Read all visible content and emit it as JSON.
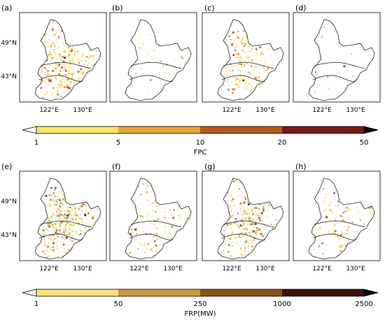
{
  "figure": {
    "rows": [
      {
        "panels": [
          "(a)",
          "(b)",
          "(c)",
          "(d)"
        ],
        "y_ticks": [
          "49°N",
          "43°N"
        ],
        "x_ticks": [
          "122°E",
          "130°E"
        ],
        "colorbar": {
          "ticks": [
            "1",
            "5",
            "10",
            "20",
            "50"
          ],
          "label": "FPC",
          "colors": [
            "#fde26b",
            "#e8a33c",
            "#b8571d",
            "#7a1616"
          ]
        },
        "fill_color": "#e8a02c",
        "density": [
          1.0,
          0.1,
          0.6,
          0.05
        ]
      },
      {
        "panels": [
          "(e)",
          "(f)",
          "(g)",
          "(h)"
        ],
        "y_ticks": [
          "49°N",
          "43°N"
        ],
        "x_ticks": [
          "122°E",
          "130°E"
        ],
        "colorbar": {
          "ticks": [
            "1",
            "50",
            "250",
            "1000",
            "2500"
          ],
          "label": "FRP(MW)",
          "colors": [
            "#f7e27a",
            "#c89a3d",
            "#8a5418",
            "#3d1208"
          ]
        },
        "fill_color": "#c8962c",
        "density": [
          1.0,
          0.35,
          0.85,
          0.3
        ]
      }
    ]
  }
}
